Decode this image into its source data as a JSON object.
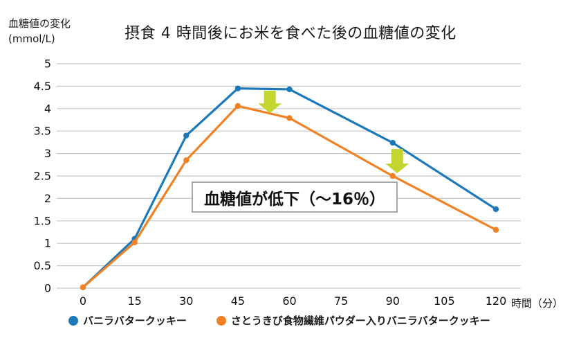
{
  "title": "摂食 4 時間後にお米を食べた後の血糖値の変化",
  "axes": {
    "y_label_line1": "血糖値の変化",
    "y_label_line2": "(mmol/L)",
    "x_label": "時間（分）"
  },
  "annotation": {
    "text": "血糖値が低下（～16％）"
  },
  "colors": {
    "blue": "#1b79bb",
    "orange": "#f08124",
    "arrow": "#c3d52e",
    "grid": "#c6c6c6",
    "text": "#1a1a1a"
  },
  "chart_data": {
    "type": "line",
    "title": "摂食 4 時間後にお米を食べた後の血糖値の変化",
    "xlabel": "時間（分）",
    "ylabel": "血糖値の変化 (mmol/L)",
    "x": [
      0,
      15,
      30,
      45,
      60,
      90,
      120
    ],
    "series": [
      {
        "name": "バニラバタークッキー",
        "color": "#1b79bb",
        "values": [
          0.02,
          1.1,
          3.4,
          4.45,
          4.43,
          3.24,
          1.76
        ]
      },
      {
        "name": "さとうきび食物繊維パウダー入りバニラバタークッキー",
        "color": "#f08124",
        "values": [
          0.02,
          1.02,
          2.85,
          4.06,
          3.79,
          2.5,
          1.3
        ]
      }
    ],
    "x_ticks": [
      0,
      15,
      30,
      45,
      60,
      75,
      90,
      105,
      120
    ],
    "y_ticks": [
      0,
      0.5,
      1,
      1.5,
      2,
      2.5,
      3,
      3.5,
      4,
      4.5,
      5
    ],
    "xlim": [
      0,
      120
    ],
    "ylim": [
      0,
      5
    ],
    "grid": "horizontal-only",
    "legend_position": "bottom",
    "marker": "circle",
    "arrows": [
      {
        "x": 54.3,
        "from": 4.4,
        "to": 3.9
      },
      {
        "x": 91.3,
        "from": 3.1,
        "to": 2.56
      }
    ]
  }
}
